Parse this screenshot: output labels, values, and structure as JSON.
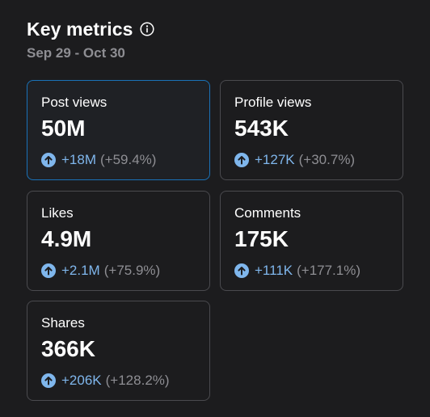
{
  "header": {
    "title": "Key metrics",
    "date_range": "Sep 29 - Oct 30"
  },
  "colors": {
    "accent": "#7fb6ec",
    "selected_border": "#1a72b8",
    "muted": "#8e8e93",
    "background": "#1c1c1e"
  },
  "metrics": [
    {
      "label": "Post views",
      "value": "50M",
      "delta": "+18M",
      "percent": "(+59.4%)",
      "selected": true,
      "icon": "arrow-up-circle-icon"
    },
    {
      "label": "Profile views",
      "value": "543K",
      "delta": "+127K",
      "percent": "(+30.7%)",
      "selected": false,
      "icon": "arrow-up-circle-icon"
    },
    {
      "label": "Likes",
      "value": "4.9M",
      "delta": "+2.1M",
      "percent": "(+75.9%)",
      "selected": false,
      "icon": "arrow-up-circle-icon"
    },
    {
      "label": "Comments",
      "value": "175K",
      "delta": "+111K",
      "percent": "(+177.1%)",
      "selected": false,
      "icon": "arrow-up-circle-icon"
    },
    {
      "label": "Shares",
      "value": "366K",
      "delta": "+206K",
      "percent": "(+128.2%)",
      "selected": false,
      "icon": "arrow-up-circle-icon"
    }
  ]
}
